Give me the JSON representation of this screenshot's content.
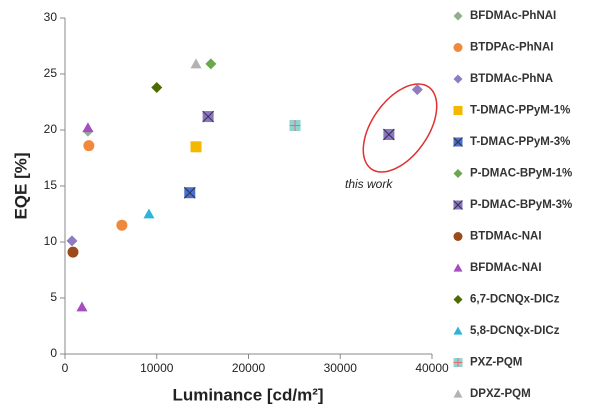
{
  "chart_data": {
    "type": "scatter",
    "x_label": "Luminance [cd/m²]",
    "y_label": "EQE [%]",
    "annotation": "this work",
    "xlim": [
      0,
      40000
    ],
    "xticks": [
      0,
      10000,
      20000,
      30000,
      40000
    ],
    "ylim": [
      0,
      30
    ],
    "yticks": [
      0,
      5,
      10,
      15,
      20,
      25,
      30
    ],
    "series": [
      {
        "name": "BFDMAc-PhNAI",
        "color": "#8fae8b",
        "marker": "diamond",
        "x": [
          2500
        ],
        "values": [
          19.9
        ]
      },
      {
        "name": "BTDPAc-PhNAI",
        "color": "#f0883e",
        "marker": "circle",
        "x": [
          2600,
          6200
        ],
        "values": [
          18.6,
          11.5
        ]
      },
      {
        "name": "BTDMAc-PhNA",
        "color": "#8e7cc3",
        "marker": "diamond",
        "x": [
          760,
          38400
        ],
        "values": [
          10.1,
          23.6
        ]
      },
      {
        "name": "T-DMAC-PPyM-1%",
        "color": "#f5b800",
        "marker": "square",
        "x": [
          14280
        ],
        "values": [
          18.5
        ]
      },
      {
        "name": "T-DMAC-PPyM-3%",
        "color": "#4a6fd1",
        "marker": "square-x",
        "x": [
          13600
        ],
        "values": [
          14.4
        ]
      },
      {
        "name": "P-DMAC-BPyM-1%",
        "color": "#6aa84f",
        "marker": "diamond",
        "x": [
          15900
        ],
        "values": [
          25.9
        ]
      },
      {
        "name": "P-DMAC-BPyM-3%",
        "color": "#8a73c9",
        "marker": "square-x",
        "x": [
          15600,
          35300
        ],
        "values": [
          21.2,
          19.6
        ]
      },
      {
        "name": "BTDMAc-NAI",
        "color": "#9c4a1a",
        "marker": "circle",
        "x": [
          870
        ],
        "values": [
          9.1
        ]
      },
      {
        "name": "BFDMAc-NAI",
        "color": "#a64dbf",
        "marker": "triangle",
        "x": [
          2500,
          1850
        ],
        "values": [
          20.2,
          4.2
        ]
      },
      {
        "name": "6,7-DCNQx-DICz",
        "color": "#4d6b00",
        "marker": "diamond",
        "x": [
          10000
        ],
        "values": [
          23.8
        ]
      },
      {
        "name": "5,8-DCNQx-DICz",
        "color": "#2cb5d8",
        "marker": "triangle",
        "x": [
          9150
        ],
        "values": [
          12.5
        ]
      },
      {
        "name": "PXZ-PQM",
        "color": "#8fd3d3",
        "marker": "square-plus",
        "x": [
          25070
        ],
        "values": [
          20.4
        ]
      },
      {
        "name": "DPXZ-PQM",
        "color": "#b3b3b3",
        "marker": "triangle",
        "x": [
          14280
        ],
        "values": [
          25.9
        ]
      }
    ]
  }
}
